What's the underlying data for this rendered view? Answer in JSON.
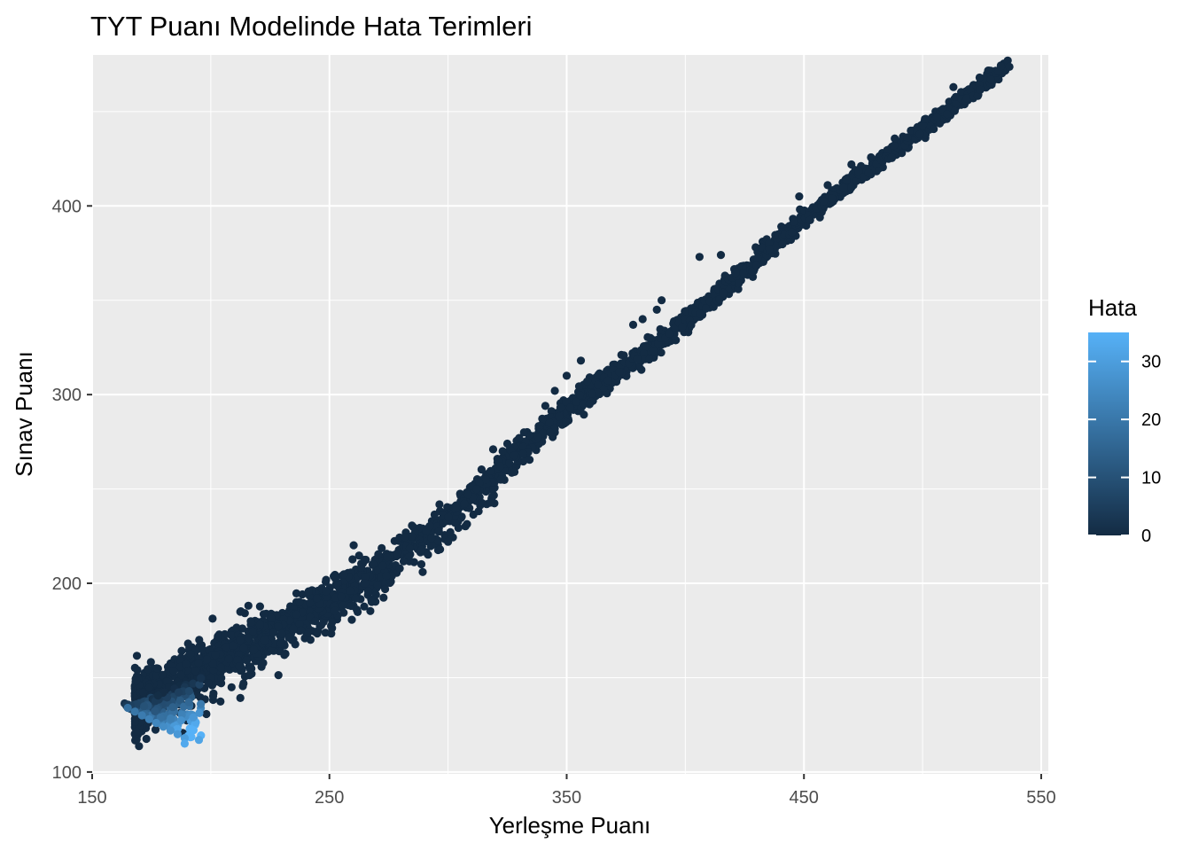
{
  "chart_data": {
    "type": "scatter",
    "title": "TYT Puanı Modelinde Hata Terimleri",
    "xlabel": "Yerleşme Puanı",
    "ylabel": "Sınav Puanı",
    "xlim": [
      150,
      553
    ],
    "ylim": [
      99,
      480
    ],
    "x_ticks": [
      "150",
      "250",
      "350",
      "450",
      "550"
    ],
    "y_ticks": [
      "100",
      "200",
      "300",
      "400"
    ],
    "x_tick_values": [
      150,
      250,
      350,
      450,
      550
    ],
    "y_tick_values": [
      100,
      200,
      300,
      400
    ],
    "grid": true,
    "legend": {
      "title": "Hata",
      "position": "right",
      "type": "colorbar",
      "range": [
        0,
        35
      ],
      "ticks": [
        "0",
        "10",
        "20",
        "30"
      ],
      "tick_values": [
        0,
        10,
        20,
        30
      ],
      "low_color": "#132b43",
      "high_color": "#56b1f7"
    },
    "point_color": "#132b43",
    "panel_background": "#ebebeb",
    "trend": {
      "description_points": [
        [
          165,
          134
        ],
        [
          200,
          160
        ],
        [
          250,
          190
        ],
        [
          300,
          236
        ],
        [
          350,
          292
        ],
        [
          400,
          338
        ],
        [
          450,
          393
        ],
        [
          500,
          441
        ],
        [
          537,
          476
        ]
      ]
    },
    "outliers": [
      [
        533,
        474
      ],
      [
        524,
        468
      ],
      [
        513,
        463
      ],
      [
        470,
        422
      ],
      [
        460,
        411
      ],
      [
        448,
        405
      ],
      [
        415,
        374
      ],
      [
        406,
        373
      ],
      [
        390,
        350
      ],
      [
        382,
        340
      ],
      [
        388,
        345
      ],
      [
        378,
        337
      ],
      [
        356,
        318
      ],
      [
        350,
        310
      ],
      [
        345,
        302
      ],
      [
        341,
        294
      ],
      [
        332,
        280
      ],
      [
        330,
        277
      ],
      [
        325,
        274
      ],
      [
        323,
        270
      ],
      [
        319,
        271
      ],
      [
        345,
        282
      ],
      [
        343,
        280
      ],
      [
        328,
        259
      ],
      [
        322,
        262
      ],
      [
        316,
        255
      ],
      [
        312,
        250
      ],
      [
        303,
        232
      ],
      [
        300,
        222
      ],
      [
        293,
        224
      ],
      [
        289,
        218
      ],
      [
        274,
        204
      ],
      [
        265,
        200
      ],
      [
        255,
        193
      ],
      [
        244,
        180
      ],
      [
        238,
        175
      ],
      [
        231,
        162
      ],
      [
        212,
        156
      ],
      [
        200,
        150
      ],
      [
        199,
        147
      ],
      [
        190,
        140
      ]
    ],
    "high_error_points": [
      [
        165,
        134
      ],
      [
        168,
        132
      ],
      [
        171,
        130
      ],
      [
        174,
        128
      ],
      [
        177,
        126
      ],
      [
        180,
        124
      ],
      [
        183,
        122
      ],
      [
        186,
        120
      ],
      [
        189,
        118
      ],
      [
        195,
        117
      ],
      [
        189,
        115
      ]
    ]
  }
}
